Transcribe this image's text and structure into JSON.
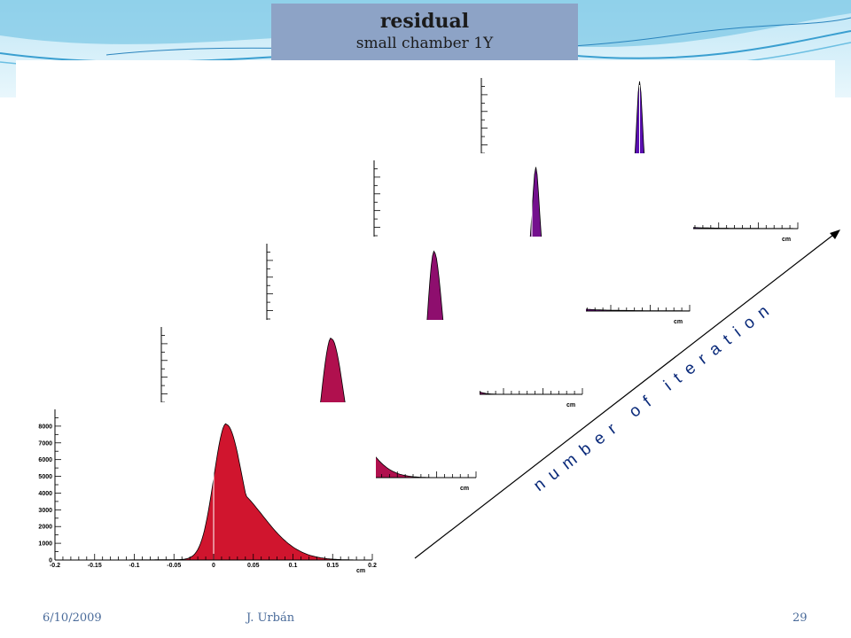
{
  "slide": {
    "title": "residual",
    "subtitle": "small chamber  1Y",
    "date": "6/10/2009",
    "author": "J. Urbán",
    "page_number": "29"
  },
  "colors": {
    "title_box": "#8da3c6",
    "footer_text": "#4a6b9a",
    "wave": "#5fb4dc"
  },
  "chart_data": {
    "type": "area",
    "description_in_image": "stack of residual histograms, one per iteration",
    "annotation": "number of iteration",
    "x_unit_label": "cm",
    "xlim": [
      -0.2,
      0.2
    ],
    "ylim": [
      0,
      9000
    ],
    "x_ticks": [
      "-0.2",
      "-0.15",
      "-0.1",
      "-0.05",
      "0",
      "0.05",
      "0.1",
      "0.15",
      "0.2"
    ],
    "y_ticks": [
      "0",
      "1000",
      "2000",
      "3000",
      "4000",
      "5000",
      "6000",
      "7000",
      "8000"
    ],
    "series": [
      {
        "color": "#d0152e",
        "peak": 0.016,
        "peak_height": 8100,
        "width": 0.045,
        "tail": "right"
      },
      {
        "color": "#b0104e",
        "peak": 0.016,
        "peak_height": 8300,
        "width": 0.035,
        "tail": "right"
      },
      {
        "color": "#8e0e6e",
        "peak": 0.012,
        "peak_height": 8500,
        "width": 0.022,
        "tail": "right"
      },
      {
        "color": "#74108e",
        "peak": 0.005,
        "peak_height": 8600,
        "width": 0.016,
        "tail": "symmetric"
      },
      {
        "color": "#5a0fb0",
        "peak": 0.0,
        "peak_height": 8800,
        "width": 0.013,
        "tail": "symmetric"
      }
    ]
  }
}
